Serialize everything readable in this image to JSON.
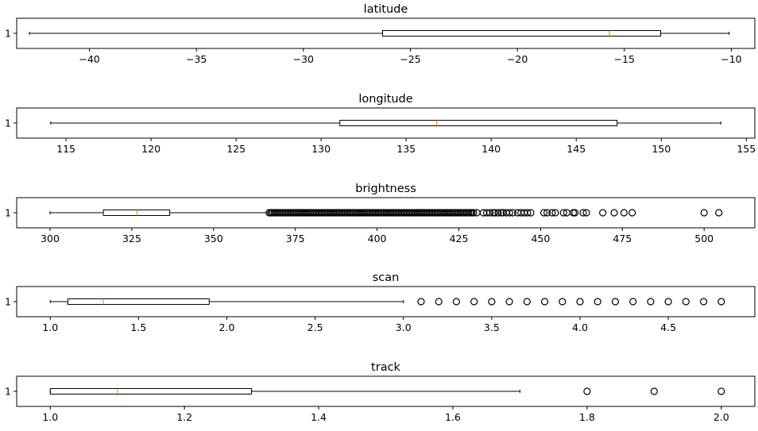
{
  "chart_data": [
    {
      "type": "boxplot",
      "orientation": "horizontal",
      "title": "latitude",
      "ytick_label": "1",
      "xlim": [
        -43.4,
        -8.9
      ],
      "xticks": [
        -40,
        -35,
        -30,
        -25,
        -20,
        -15,
        -10
      ],
      "xtick_labels": [
        "−40",
        "−35",
        "−30",
        "−25",
        "−20",
        "−15",
        "−10"
      ],
      "stats": {
        "whislo": -42.8,
        "q1": -26.3,
        "median": -15.7,
        "q3": -13.3,
        "whishi": -10.1
      },
      "fliers": []
    },
    {
      "type": "boxplot",
      "orientation": "horizontal",
      "title": "longitude",
      "ytick_label": "1",
      "xlim": [
        112.1,
        155.5
      ],
      "xticks": [
        115,
        120,
        125,
        130,
        135,
        140,
        145,
        150,
        155
      ],
      "xtick_labels": [
        "115",
        "120",
        "125",
        "130",
        "135",
        "140",
        "145",
        "150",
        "155"
      ],
      "stats": {
        "whislo": 114.1,
        "q1": 131.1,
        "median": 136.8,
        "q3": 147.4,
        "whishi": 153.5
      },
      "fliers": []
    },
    {
      "type": "boxplot",
      "orientation": "horizontal",
      "title": "brightness",
      "ytick_label": "1",
      "xlim": [
        289.8,
        515.5
      ],
      "xticks": [
        300,
        325,
        350,
        375,
        400,
        425,
        450,
        475,
        500
      ],
      "xtick_labels": [
        "300",
        "325",
        "350",
        "375",
        "400",
        "425",
        "450",
        "475",
        "500"
      ],
      "stats": {
        "whislo": 300.0,
        "q1": 316.3,
        "median": 326.6,
        "q3": 336.6,
        "whishi": 367.0
      },
      "fliers": [
        367.0,
        367.5,
        368.0,
        368.5,
        369.0,
        369.5,
        370.0,
        370.5,
        371.0,
        371.5,
        372.0,
        372.5,
        373.0,
        373.5,
        374.0,
        374.5,
        375.0,
        375.5,
        376.0,
        376.5,
        377.0,
        377.5,
        378.0,
        378.5,
        379.0,
        379.5,
        380.0,
        380.5,
        381.0,
        381.5,
        382.0,
        382.5,
        383.0,
        383.5,
        384.0,
        384.5,
        385.0,
        385.5,
        386.0,
        386.5,
        387.0,
        387.5,
        388.0,
        388.5,
        389.0,
        389.5,
        390.0,
        390.5,
        391.0,
        391.5,
        392.0,
        392.5,
        393.0,
        393.5,
        394.0,
        394.5,
        395.0,
        395.5,
        396.0,
        396.5,
        397.0,
        397.5,
        398.0,
        398.5,
        399.0,
        399.5,
        400.0,
        400.5,
        401.0,
        401.5,
        402.0,
        402.5,
        403.0,
        403.5,
        404.0,
        404.5,
        405.0,
        405.5,
        406.0,
        406.5,
        407.0,
        407.5,
        408.0,
        408.5,
        409.0,
        409.5,
        410.0,
        410.5,
        411.0,
        411.5,
        412.0,
        412.5,
        413.0,
        413.5,
        414.0,
        414.5,
        415.0,
        415.5,
        416.0,
        416.5,
        417.0,
        417.5,
        418.0,
        418.5,
        419.0,
        419.5,
        420.0,
        420.5,
        421.0,
        421.5,
        422.0,
        422.5,
        423.0,
        423.5,
        424.0,
        424.5,
        425.0,
        425.5,
        426.0,
        426.5,
        427.0,
        427.5,
        428.0,
        428.5,
        429.0,
        429.5,
        430.5,
        432.5,
        433.5,
        434.5,
        435.5,
        436.0,
        437.0,
        438.0,
        438.5,
        439.5,
        440.5,
        441.5,
        443.0,
        444.0,
        445.0,
        446.0,
        447.0,
        451.0,
        452.0,
        453.5,
        454.5,
        457.0,
        458.0,
        460.0,
        460.5,
        463.0,
        464.0,
        469.0,
        472.5,
        475.5,
        478.0,
        500.0,
        504.5
      ]
    },
    {
      "type": "boxplot",
      "orientation": "horizontal",
      "title": "scan",
      "ytick_label": "1",
      "xlim": [
        0.81,
        4.99
      ],
      "xticks": [
        1.0,
        1.5,
        2.0,
        2.5,
        3.0,
        3.5,
        4.0,
        4.5
      ],
      "xtick_labels": [
        "1.0",
        "1.5",
        "2.0",
        "2.5",
        "3.0",
        "3.5",
        "4.0",
        "4.5"
      ],
      "stats": {
        "whislo": 1.0,
        "q1": 1.1,
        "median": 1.3,
        "q3": 1.9,
        "whishi": 3.0
      },
      "fliers": [
        3.1,
        3.2,
        3.3,
        3.4,
        3.5,
        3.6,
        3.7,
        3.8,
        3.9,
        4.0,
        4.1,
        4.2,
        4.3,
        4.4,
        4.5,
        4.6,
        4.7,
        4.8
      ]
    },
    {
      "type": "boxplot",
      "orientation": "horizontal",
      "title": "track",
      "ytick_label": "1",
      "xlim": [
        0.95,
        2.05
      ],
      "xticks": [
        1.0,
        1.2,
        1.4,
        1.6,
        1.8,
        2.0
      ],
      "xtick_labels": [
        "1.0",
        "1.2",
        "1.4",
        "1.6",
        "1.8",
        "2.0"
      ],
      "stats": {
        "whislo": 1.0,
        "q1": 1.0,
        "median": 1.1,
        "q3": 1.3,
        "whishi": 1.7
      },
      "fliers": [
        1.8,
        1.9,
        2.0
      ]
    }
  ]
}
